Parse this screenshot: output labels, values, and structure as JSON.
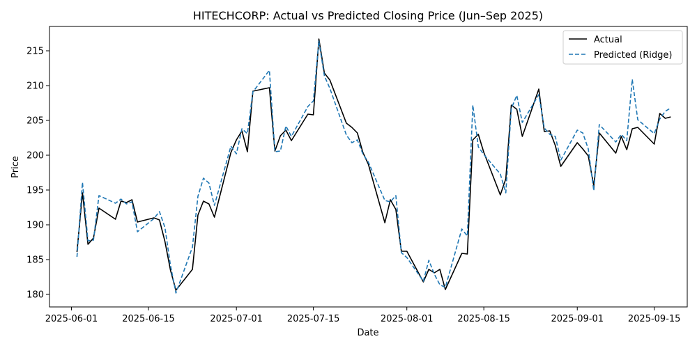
{
  "chart_data": {
    "type": "line",
    "title": "HITECHCORP: Actual vs Predicted Closing Price (Jun–Sep 2025)",
    "xlabel": "Date",
    "ylabel": "Price",
    "xlim": [
      "2025-05-28",
      "2025-09-21"
    ],
    "ylim": [
      178.2,
      218.5
    ],
    "x_ticks": [
      "2025-06-01",
      "2025-06-15",
      "2025-07-01",
      "2025-07-15",
      "2025-08-01",
      "2025-08-15",
      "2025-09-01",
      "2025-09-15"
    ],
    "y_ticks": [
      180,
      185,
      190,
      195,
      200,
      205,
      210,
      215
    ],
    "grid": false,
    "legend": "top-right",
    "series": [
      {
        "name": "Actual",
        "color": "#000000",
        "style": "solid",
        "points": [
          [
            "2025-06-02",
            186.1
          ],
          [
            "2025-06-03",
            194.6
          ],
          [
            "2025-06-04",
            187.2
          ],
          [
            "2025-06-05",
            188.1
          ],
          [
            "2025-06-06",
            192.4
          ],
          [
            "2025-06-09",
            190.8
          ],
          [
            "2025-06-10",
            193.4
          ],
          [
            "2025-06-11",
            193.2
          ],
          [
            "2025-06-12",
            193.6
          ],
          [
            "2025-06-13",
            190.4
          ],
          [
            "2025-06-16",
            191.0
          ],
          [
            "2025-06-17",
            190.7
          ],
          [
            "2025-06-18",
            187.6
          ],
          [
            "2025-06-19",
            183.5
          ],
          [
            "2025-06-20",
            180.6
          ],
          [
            "2025-06-23",
            183.6
          ],
          [
            "2025-06-24",
            191.4
          ],
          [
            "2025-06-25",
            193.4
          ],
          [
            "2025-06-26",
            193.0
          ],
          [
            "2025-06-27",
            191.1
          ],
          [
            "2025-06-30",
            200.4
          ],
          [
            "2025-07-01",
            202.2
          ],
          [
            "2025-07-02",
            203.5
          ],
          [
            "2025-07-03",
            200.5
          ],
          [
            "2025-07-04",
            209.2
          ],
          [
            "2025-07-07",
            209.7
          ],
          [
            "2025-07-08",
            200.6
          ],
          [
            "2025-07-09",
            202.8
          ],
          [
            "2025-07-10",
            203.6
          ],
          [
            "2025-07-11",
            202.1
          ],
          [
            "2025-07-14",
            205.9
          ],
          [
            "2025-07-15",
            205.8
          ],
          [
            "2025-07-16",
            216.7
          ],
          [
            "2025-07-17",
            211.8
          ],
          [
            "2025-07-18",
            210.8
          ],
          [
            "2025-07-21",
            204.6
          ],
          [
            "2025-07-22",
            204.0
          ],
          [
            "2025-07-23",
            203.2
          ],
          [
            "2025-07-24",
            200.4
          ],
          [
            "2025-07-25",
            198.7
          ],
          [
            "2025-07-28",
            190.3
          ],
          [
            "2025-07-29",
            193.6
          ],
          [
            "2025-07-30",
            192.2
          ],
          [
            "2025-07-31",
            186.2
          ],
          [
            "2025-08-01",
            186.2
          ],
          [
            "2025-08-04",
            181.8
          ],
          [
            "2025-08-05",
            183.6
          ],
          [
            "2025-08-06",
            183.1
          ],
          [
            "2025-08-07",
            183.6
          ],
          [
            "2025-08-08",
            180.7
          ],
          [
            "2025-08-11",
            185.9
          ],
          [
            "2025-08-12",
            185.8
          ],
          [
            "2025-08-13",
            202.2
          ],
          [
            "2025-08-14",
            203.0
          ],
          [
            "2025-08-15",
            200.4
          ],
          [
            "2025-08-18",
            194.3
          ],
          [
            "2025-08-19",
            196.6
          ],
          [
            "2025-08-20",
            207.2
          ],
          [
            "2025-08-21",
            206.6
          ],
          [
            "2025-08-22",
            202.7
          ],
          [
            "2025-08-25",
            209.5
          ],
          [
            "2025-08-26",
            203.4
          ],
          [
            "2025-08-27",
            203.5
          ],
          [
            "2025-08-28",
            201.4
          ],
          [
            "2025-08-29",
            198.4
          ],
          [
            "2025-09-01",
            201.8
          ],
          [
            "2025-09-02",
            200.9
          ],
          [
            "2025-09-03",
            199.9
          ],
          [
            "2025-09-04",
            195.6
          ],
          [
            "2025-09-05",
            203.2
          ],
          [
            "2025-09-08",
            200.3
          ],
          [
            "2025-09-09",
            202.7
          ],
          [
            "2025-09-10",
            200.8
          ],
          [
            "2025-09-11",
            203.8
          ],
          [
            "2025-09-12",
            204.0
          ],
          [
            "2025-09-15",
            201.6
          ],
          [
            "2025-09-16",
            206.0
          ],
          [
            "2025-09-17",
            205.3
          ],
          [
            "2025-09-18",
            205.5
          ]
        ]
      },
      {
        "name": "Predicted (Ridge)",
        "color": "#1f77b4",
        "style": "dashed",
        "points": [
          [
            "2025-06-02",
            185.4
          ],
          [
            "2025-06-03",
            196.1
          ],
          [
            "2025-06-04",
            187.7
          ],
          [
            "2025-06-05",
            187.8
          ],
          [
            "2025-06-06",
            194.2
          ],
          [
            "2025-06-09",
            193.1
          ],
          [
            "2025-06-10",
            193.7
          ],
          [
            "2025-06-11",
            193.0
          ],
          [
            "2025-06-12",
            193.3
          ],
          [
            "2025-06-13",
            189.0
          ],
          [
            "2025-06-16",
            190.9
          ],
          [
            "2025-06-17",
            191.9
          ],
          [
            "2025-06-18",
            189.6
          ],
          [
            "2025-06-19",
            184.2
          ],
          [
            "2025-06-20",
            180.2
          ],
          [
            "2025-06-23",
            186.8
          ],
          [
            "2025-06-24",
            194.1
          ],
          [
            "2025-06-25",
            196.7
          ],
          [
            "2025-06-26",
            196.0
          ],
          [
            "2025-06-27",
            192.8
          ],
          [
            "2025-06-30",
            201.3
          ],
          [
            "2025-07-01",
            200.2
          ],
          [
            "2025-07-02",
            203.8
          ],
          [
            "2025-07-03",
            203.1
          ],
          [
            "2025-07-04",
            209.1
          ],
          [
            "2025-07-07",
            212.2
          ],
          [
            "2025-07-08",
            200.5
          ],
          [
            "2025-07-09",
            200.6
          ],
          [
            "2025-07-10",
            204.2
          ],
          [
            "2025-07-11",
            202.7
          ],
          [
            "2025-07-14",
            207.0
          ],
          [
            "2025-07-15",
            207.8
          ],
          [
            "2025-07-16",
            216.4
          ],
          [
            "2025-07-17",
            211.4
          ],
          [
            "2025-07-18",
            209.6
          ],
          [
            "2025-07-21",
            202.9
          ],
          [
            "2025-07-22",
            201.8
          ],
          [
            "2025-07-23",
            202.2
          ],
          [
            "2025-07-24",
            200.2
          ],
          [
            "2025-07-25",
            199.0
          ],
          [
            "2025-07-28",
            193.5
          ],
          [
            "2025-07-29",
            193.3
          ],
          [
            "2025-07-30",
            194.2
          ],
          [
            "2025-07-31",
            186.0
          ],
          [
            "2025-08-01",
            185.3
          ],
          [
            "2025-08-04",
            181.9
          ],
          [
            "2025-08-05",
            184.9
          ],
          [
            "2025-08-06",
            182.9
          ],
          [
            "2025-08-07",
            181.4
          ],
          [
            "2025-08-08",
            181.0
          ],
          [
            "2025-08-11",
            189.4
          ],
          [
            "2025-08-12",
            188.4
          ],
          [
            "2025-08-13",
            207.2
          ],
          [
            "2025-08-14",
            201.2
          ],
          [
            "2025-08-15",
            200.1
          ],
          [
            "2025-08-18",
            197.3
          ],
          [
            "2025-08-19",
            194.6
          ],
          [
            "2025-08-20",
            206.7
          ],
          [
            "2025-08-21",
            208.6
          ],
          [
            "2025-08-22",
            204.7
          ],
          [
            "2025-08-25",
            208.7
          ],
          [
            "2025-08-26",
            203.9
          ],
          [
            "2025-08-27",
            203.0
          ],
          [
            "2025-08-28",
            202.7
          ],
          [
            "2025-08-29",
            199.3
          ],
          [
            "2025-09-01",
            203.6
          ],
          [
            "2025-09-02",
            203.2
          ],
          [
            "2025-09-03",
            200.9
          ],
          [
            "2025-09-04",
            194.9
          ],
          [
            "2025-09-05",
            204.4
          ],
          [
            "2025-09-08",
            201.9
          ],
          [
            "2025-09-09",
            203.0
          ],
          [
            "2025-09-10",
            202.1
          ],
          [
            "2025-09-11",
            210.9
          ],
          [
            "2025-09-12",
            205.1
          ],
          [
            "2025-09-15",
            203.1
          ],
          [
            "2025-09-16",
            205.2
          ],
          [
            "2025-09-17",
            206.3
          ],
          [
            "2025-09-18",
            206.8
          ]
        ]
      }
    ]
  }
}
